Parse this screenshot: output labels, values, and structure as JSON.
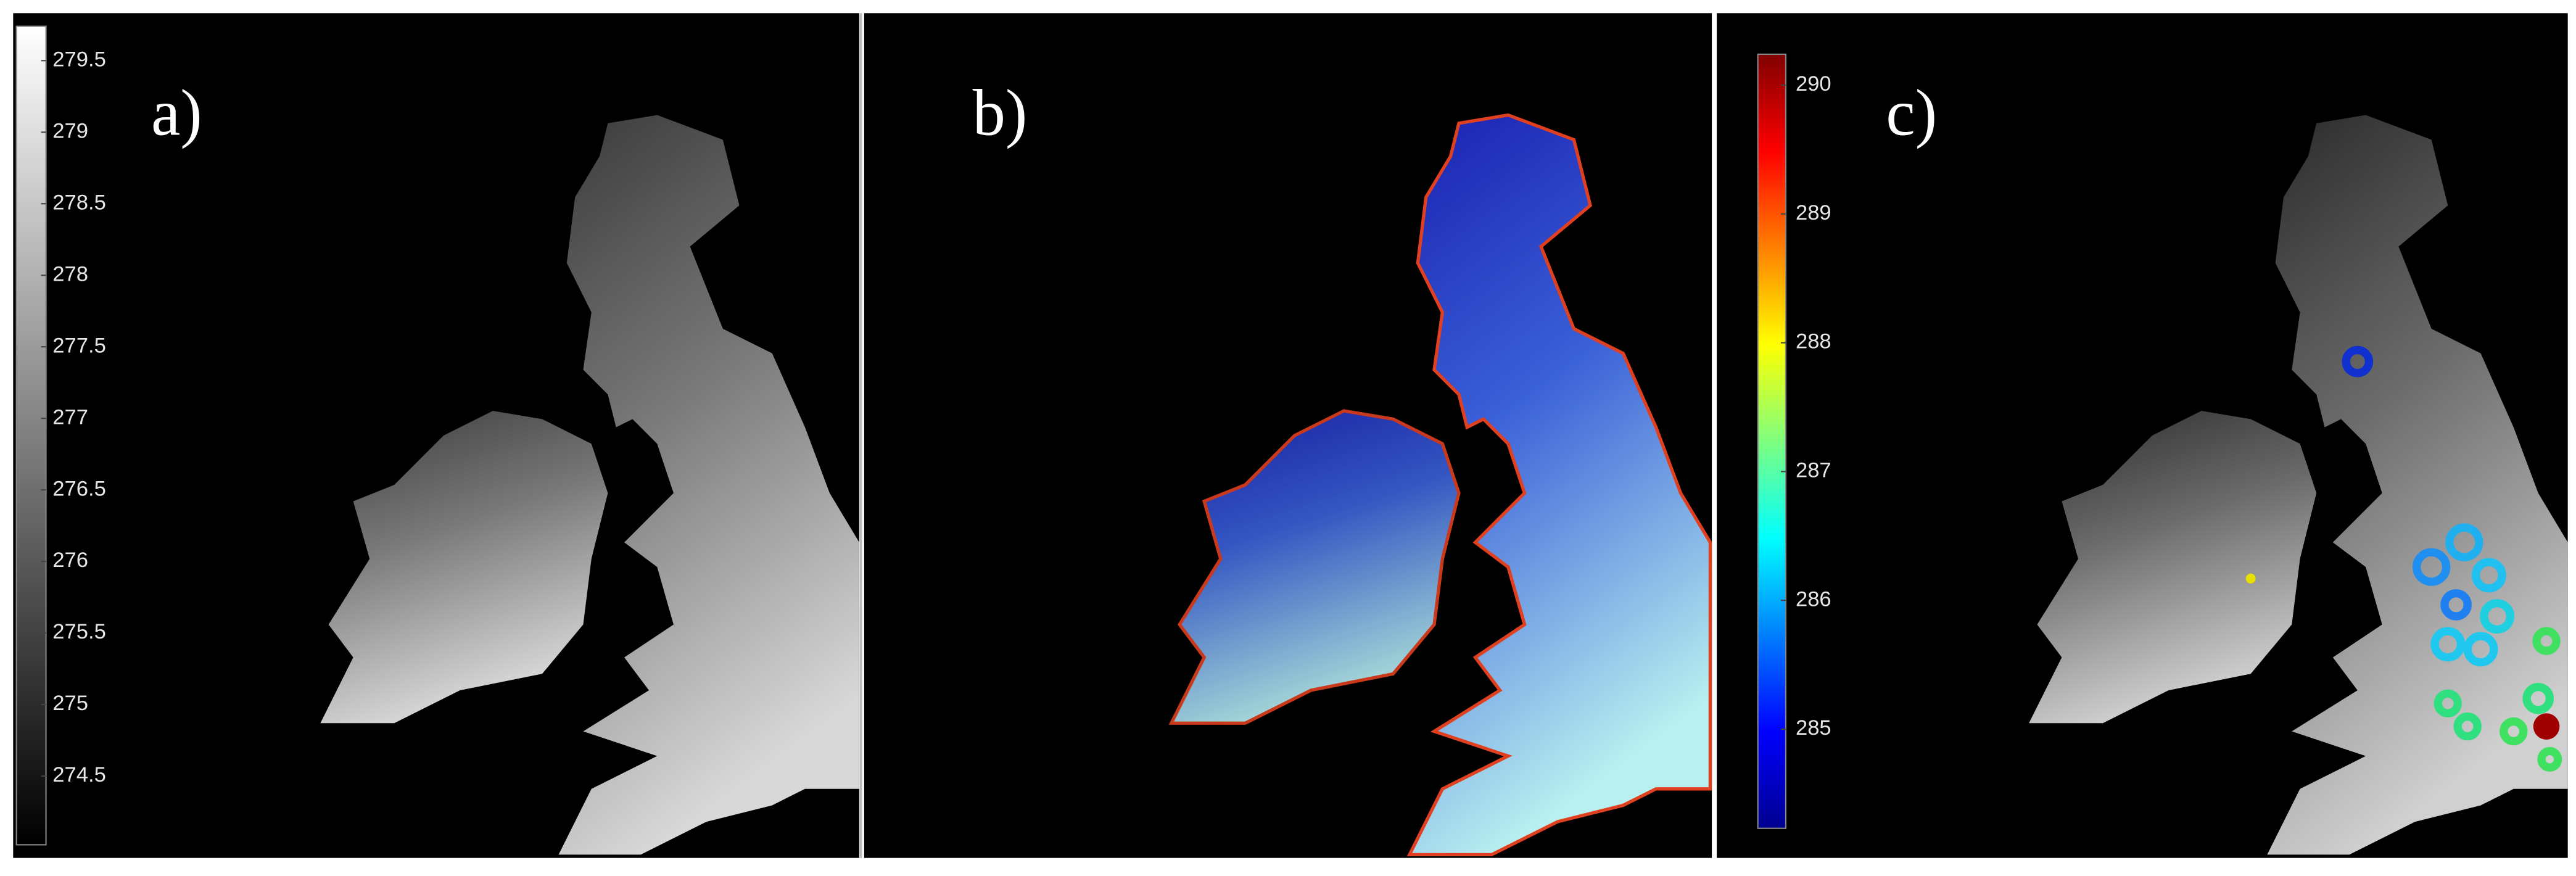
{
  "panels": [
    {
      "label": "a)"
    },
    {
      "label": "b)"
    },
    {
      "label": "c)"
    }
  ],
  "colorbars": [
    {
      "colormap": "gray",
      "ylim": [
        274.02,
        279.74
      ],
      "yticks": [
        274.5,
        275,
        275.5,
        276,
        276.5,
        277,
        277.5,
        278,
        278.5,
        279,
        279.5
      ]
    },
    {
      "colormap": "jet",
      "ylim": [
        284.23,
        290.24
      ],
      "yticks": [
        285,
        286,
        287,
        288,
        289,
        290
      ]
    }
  ]
}
